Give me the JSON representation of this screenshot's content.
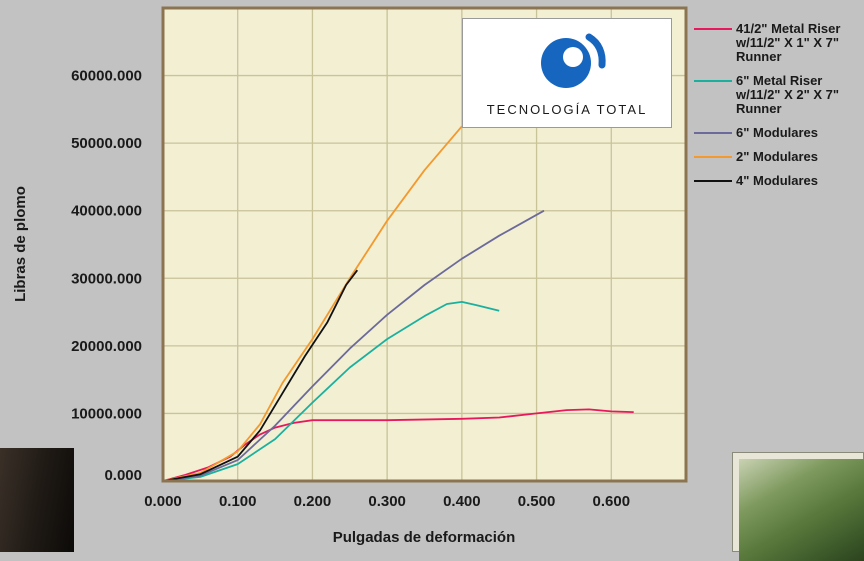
{
  "chart_data": {
    "type": "line",
    "title": "",
    "xlabel": "Pulgadas de deformación",
    "ylabel": "Libras de plomo",
    "xlim": [
      0,
      0.7
    ],
    "ylim": [
      0,
      70000
    ],
    "x_ticks": [
      "0.000",
      "0.100",
      "0.200",
      "0.300",
      "0.400",
      "0.500",
      "0.600"
    ],
    "y_ticks": [
      "0.000",
      "10000.000",
      "20000.000",
      "30000.000",
      "40000.000",
      "50000.000",
      "60000.000"
    ],
    "grid": true,
    "legend_position": "right",
    "series": [
      {
        "name": "4 1/2\" Metal Riser w/1 1/2\" X 1\" X 7\" Runner",
        "color": "#e8185c",
        "points": [
          [
            0,
            0
          ],
          [
            0.03,
            900
          ],
          [
            0.06,
            2000
          ],
          [
            0.09,
            3600
          ],
          [
            0.11,
            5400
          ],
          [
            0.13,
            6900
          ],
          [
            0.15,
            7900
          ],
          [
            0.175,
            8600
          ],
          [
            0.2,
            9000
          ],
          [
            0.3,
            9000
          ],
          [
            0.4,
            9200
          ],
          [
            0.45,
            9400
          ],
          [
            0.5,
            10000
          ],
          [
            0.54,
            10500
          ],
          [
            0.57,
            10600
          ],
          [
            0.6,
            10300
          ],
          [
            0.63,
            10200
          ]
        ]
      },
      {
        "name": "6\" Metal Riser w/1 1/2\" X 2\" X 7\" Runner",
        "color": "#1bb09e",
        "points": [
          [
            0,
            0
          ],
          [
            0.05,
            600
          ],
          [
            0.1,
            2500
          ],
          [
            0.15,
            6200
          ],
          [
            0.2,
            11600
          ],
          [
            0.25,
            16800
          ],
          [
            0.3,
            21000
          ],
          [
            0.35,
            24400
          ],
          [
            0.38,
            26200
          ],
          [
            0.4,
            26500
          ],
          [
            0.42,
            26000
          ],
          [
            0.45,
            25200
          ]
        ]
      },
      {
        "name": "6\" Modulares",
        "color": "#6c6a9a",
        "points": [
          [
            0,
            0
          ],
          [
            0.05,
            800
          ],
          [
            0.1,
            3100
          ],
          [
            0.15,
            8200
          ],
          [
            0.2,
            14000
          ],
          [
            0.25,
            19600
          ],
          [
            0.3,
            24600
          ],
          [
            0.35,
            29000
          ],
          [
            0.4,
            32900
          ],
          [
            0.45,
            36300
          ],
          [
            0.5,
            39400
          ],
          [
            0.51,
            40000
          ]
        ]
      },
      {
        "name": "2\" Modulares",
        "color": "#f3992d",
        "points": [
          [
            0,
            0
          ],
          [
            0.05,
            1200
          ],
          [
            0.1,
            4400
          ],
          [
            0.13,
            8400
          ],
          [
            0.16,
            14500
          ],
          [
            0.2,
            21000
          ],
          [
            0.25,
            30000
          ],
          [
            0.3,
            38500
          ],
          [
            0.35,
            46000
          ],
          [
            0.4,
            52500
          ]
        ]
      },
      {
        "name": "4\" Modulares",
        "color": "#111111",
        "points": [
          [
            0,
            0
          ],
          [
            0.05,
            1000
          ],
          [
            0.1,
            3600
          ],
          [
            0.13,
            7500
          ],
          [
            0.16,
            13000
          ],
          [
            0.19,
            18500
          ],
          [
            0.22,
            23500
          ],
          [
            0.245,
            29000
          ],
          [
            0.26,
            31200
          ]
        ]
      }
    ]
  },
  "legend_items": [
    {
      "label": "41/2\" Metal Riser\nw/11/2\" X 1\" X 7\"\nRunner",
      "color": "#e8185c"
    },
    {
      "label": "6\" Metal Riser\nw/11/2\" X 2\" X 7\"\nRunner",
      "color": "#1bb09e"
    },
    {
      "label": "6\" Modulares",
      "color": "#6c6a9a"
    },
    {
      "label": "2\" Modulares",
      "color": "#f3992d"
    },
    {
      "label": "4\" Modulares",
      "color": "#111111"
    }
  ],
  "logo": {
    "text": "TECNOLOGÍA TOTAL",
    "icon": "tecnologia-total-logo-icon"
  },
  "colors": {
    "background": "#c2c2c2",
    "plot_area": "#f2efd3",
    "grid": "#c9c398",
    "frame": "#8c7450"
  }
}
